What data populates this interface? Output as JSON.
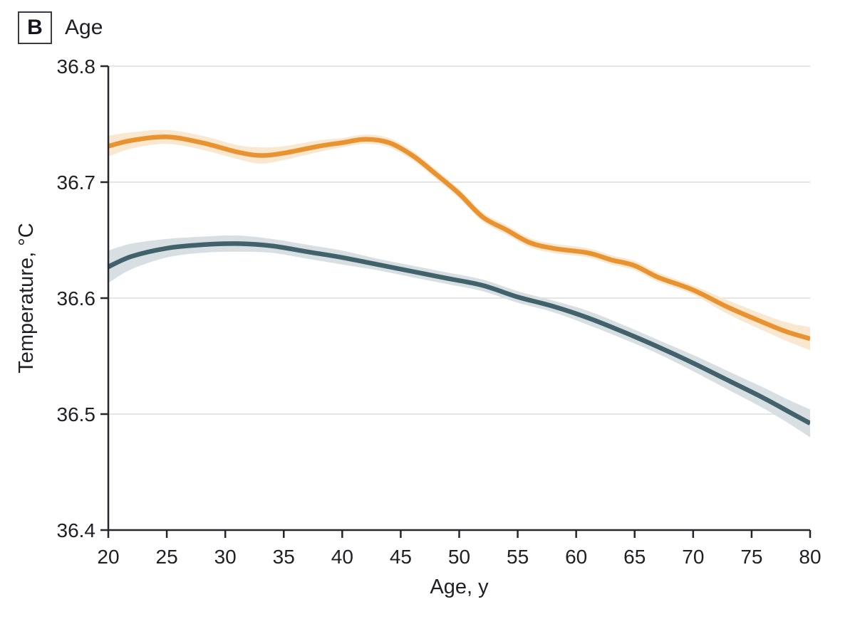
{
  "header": {
    "panel_label": "B",
    "title": "Age"
  },
  "chart_data": {
    "type": "line",
    "title": "Age",
    "panel_label": "B",
    "xlabel": "Age, y",
    "ylabel": "Temperature, °C",
    "xlim": [
      20,
      80
    ],
    "ylim": [
      36.4,
      36.8
    ],
    "x_ticks": [
      20,
      25,
      30,
      35,
      40,
      45,
      50,
      55,
      60,
      65,
      70,
      75,
      80
    ],
    "y_ticks": [
      "36.8",
      "36.7",
      "36.6",
      "36.5",
      "36.4"
    ],
    "grid": "horizontal-only",
    "legend": "none",
    "colors": {
      "axis": "#26262e",
      "gridline": "#e5e5e5",
      "text": "#1f1f27",
      "orange_line": "#e8932f",
      "orange_band": "#fae7d0",
      "teal_line": "#41616b",
      "teal_band": "#d8dfe2"
    },
    "series": [
      {
        "name": "orange-curve",
        "color": "#e8932f",
        "band_color": "#fae7d0",
        "x": [
          20,
          22,
          25,
          28,
          31,
          33,
          35,
          38,
          40,
          42,
          44,
          46,
          48,
          50,
          52,
          54,
          56,
          58,
          61,
          63,
          65,
          67,
          70,
          73,
          76,
          78,
          80
        ],
        "y": [
          36.731,
          36.736,
          36.739,
          36.734,
          36.726,
          36.723,
          36.725,
          36.731,
          36.734,
          36.737,
          36.734,
          36.723,
          36.707,
          36.69,
          36.67,
          36.659,
          36.648,
          36.643,
          36.639,
          36.633,
          36.628,
          36.618,
          36.607,
          36.592,
          36.579,
          36.571,
          36.565
        ],
        "ci_upper": [
          36.74,
          36.743,
          36.745,
          36.74,
          36.732,
          36.73,
          36.731,
          36.736,
          36.738,
          36.741,
          36.738,
          36.727,
          36.711,
          36.694,
          36.674,
          36.663,
          36.652,
          36.647,
          36.643,
          36.637,
          36.632,
          36.622,
          36.611,
          36.598,
          36.586,
          36.579,
          36.575
        ],
        "ci_lower": [
          36.722,
          36.729,
          36.733,
          36.728,
          36.72,
          36.716,
          36.719,
          36.726,
          36.73,
          36.733,
          36.73,
          36.719,
          36.703,
          36.686,
          36.666,
          36.655,
          36.644,
          36.639,
          36.635,
          36.629,
          36.624,
          36.614,
          36.603,
          36.586,
          36.572,
          36.563,
          36.555
        ]
      },
      {
        "name": "teal-curve",
        "color": "#41616b",
        "band_color": "#d8dfe2",
        "x": [
          20,
          22,
          25,
          28,
          31,
          34,
          37,
          40,
          43,
          46,
          49,
          52,
          55,
          58,
          61,
          64,
          67,
          70,
          73,
          76,
          78,
          80
        ],
        "y": [
          36.627,
          36.636,
          36.643,
          36.646,
          36.647,
          36.645,
          36.64,
          36.635,
          36.629,
          36.623,
          36.617,
          36.611,
          36.601,
          36.593,
          36.583,
          36.571,
          36.558,
          36.544,
          36.529,
          36.514,
          36.503,
          36.492
        ],
        "ci_upper": [
          36.641,
          36.647,
          36.651,
          36.653,
          36.654,
          36.651,
          36.646,
          36.641,
          36.634,
          36.628,
          36.622,
          36.616,
          36.606,
          36.598,
          36.589,
          36.577,
          36.564,
          36.551,
          36.537,
          36.523,
          36.513,
          36.504
        ],
        "ci_lower": [
          36.613,
          36.625,
          36.635,
          36.639,
          36.64,
          36.639,
          36.634,
          36.629,
          36.624,
          36.618,
          36.612,
          36.606,
          36.596,
          36.588,
          36.577,
          36.565,
          36.552,
          36.537,
          36.521,
          36.505,
          36.493,
          36.48
        ]
      }
    ]
  }
}
